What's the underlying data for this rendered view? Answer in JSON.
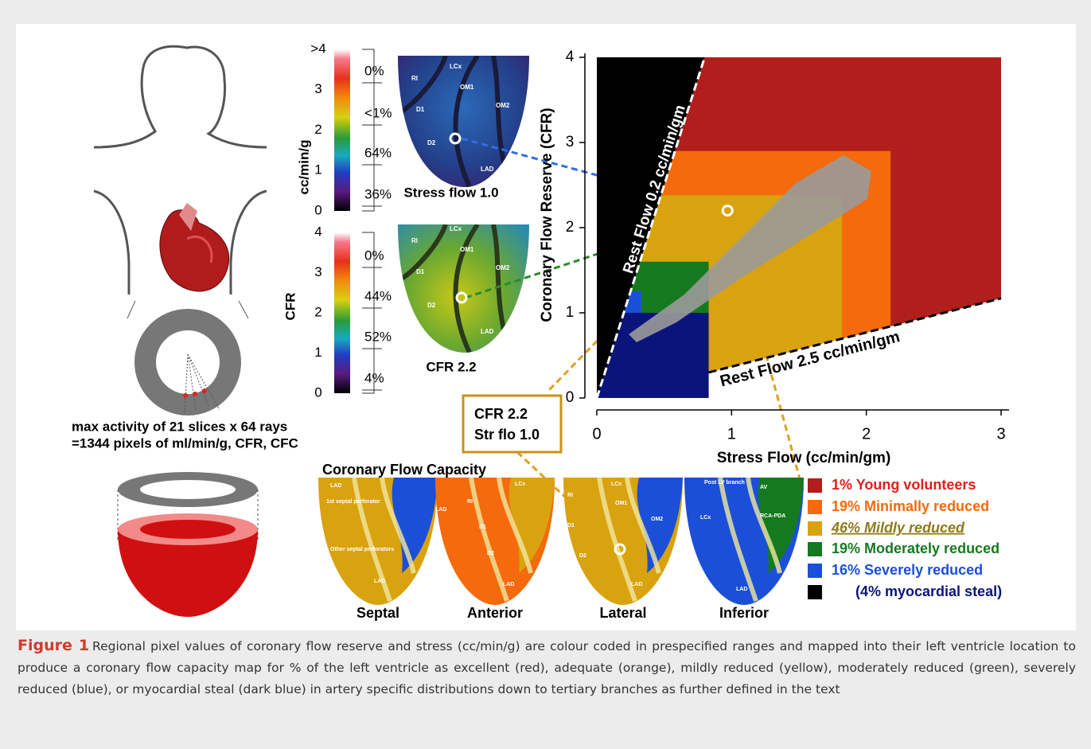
{
  "illustration": {
    "caption": [
      "max activity of 21 slices x 64 rays",
      "=1344 pixels of ml/min/g, CFR, CFC"
    ]
  },
  "stress_colorbar": {
    "axis_label": "cc/min/g",
    "ticks": [
      {
        "value": 4,
        "label": ">4"
      },
      3,
      2,
      1,
      0
    ],
    "percents": [
      "0%",
      "<1%",
      "64%",
      "36%"
    ]
  },
  "cfr_colorbar": {
    "axis_label": "CFR",
    "ticks": [
      4,
      3,
      2,
      1,
      0
    ],
    "percents": [
      "0%",
      "44%",
      "52%",
      "4%"
    ]
  },
  "stress_map": {
    "labels": [
      "LCx",
      "RI",
      "OM1",
      "D1",
      "OM2",
      "D2",
      "LAD"
    ],
    "caption": "Stress flow 1.0"
  },
  "cfr_map": {
    "labels": [
      "LCx",
      "RI",
      "OM1",
      "D1",
      "OM2",
      "D2",
      "LAD"
    ],
    "caption": "CFR 2.2"
  },
  "callout": [
    "CFR 2.2",
    "Str flo 1.0"
  ],
  "chart_data": {
    "type": "scatter",
    "xlabel": "Stress Flow (cc/min/gm)",
    "ylabel": "Coronary Flow Reserve (CFR)",
    "xlim": [
      0,
      3
    ],
    "ylim": [
      0,
      4
    ],
    "xticks": [
      0,
      1,
      2,
      3
    ],
    "yticks": [
      0,
      1,
      2,
      3,
      4
    ],
    "regions": [
      {
        "color": "#b01f1c",
        "xmax": 3,
        "ymax": 4
      },
      {
        "color": "#f46a0c",
        "xmax": 2.18,
        "ymax": 2.9
      },
      {
        "color": "#d9a20f",
        "xmax": 1.82,
        "ymax": 2.38
      },
      {
        "color": "#157a1f",
        "xmax": 0.83,
        "ymax": 1.6
      },
      {
        "color": "#1b4fd8",
        "xmax": 0.33,
        "ymax": 1.25
      },
      {
        "color": "#0a147a",
        "xmax": 0.83,
        "ymax": 1.0
      }
    ],
    "rest_lines": [
      {
        "label": "Rest Flow 0.2 cc/min/gm",
        "x": [
          0,
          0.8
        ],
        "y": [
          0,
          4
        ]
      },
      {
        "label": "Rest Flow 2.5 cc/min/gm",
        "x": [
          0.83,
          3
        ],
        "y": [
          0.3,
          1.17
        ]
      }
    ],
    "highlight": {
      "x": 0.97,
      "y": 2.2
    }
  },
  "cfc_maps": {
    "title": "Coronary Flow Capacity",
    "views": [
      {
        "name": "Septal",
        "labels": [
          "LAD",
          "1st septal perforator",
          "Other septal perforators",
          "LAD"
        ]
      },
      {
        "name": "Anterior",
        "labels": [
          "LCx",
          "RI",
          "LAD",
          "D1",
          "D2",
          "LAD"
        ]
      },
      {
        "name": "Lateral",
        "labels": [
          "RI",
          "LCx",
          "OM1",
          "D1",
          "OM2",
          "D2",
          "LAD"
        ]
      },
      {
        "name": "Inferior",
        "labels": [
          "Post LV branch",
          "AV",
          "LCx",
          "RCA-PDA",
          "LAD"
        ]
      }
    ]
  },
  "legend": [
    {
      "label": "1% Young volunteers",
      "color": "#b01f1c",
      "text_color": "#e0201b"
    },
    {
      "label": "19% Minimally reduced",
      "color": "#f46a0c",
      "text_color": "#f46a0c"
    },
    {
      "label": "46% Mildly reduced",
      "color": "#d9a20f",
      "text_color": "#8f7a1a"
    },
    {
      "label": "19% Moderately reduced",
      "color": "#157a1f",
      "text_color": "#157a1f"
    },
    {
      "label": "16% Severely reduced",
      "color": "#1b4fd8",
      "text_color": "#1b4fd8"
    },
    {
      "label": "(4% myocardial steal)",
      "color": "#000000",
      "text_color": "#0a147a"
    }
  ],
  "caption": {
    "label": "Figure 1",
    "text": "Regional pixel values of coronary flow reserve and stress (cc/min/g) are colour coded in prespecified ranges and mapped into their left ventricle location to produce a coronary flow capacity map for % of the left ventricle as excellent (red), adequate (orange), mildly reduced (yellow), moderately reduced (green), severely reduced (blue), or myocardial steal (dark blue) in artery specific distributions down to tertiary branches as further defined in the text"
  }
}
